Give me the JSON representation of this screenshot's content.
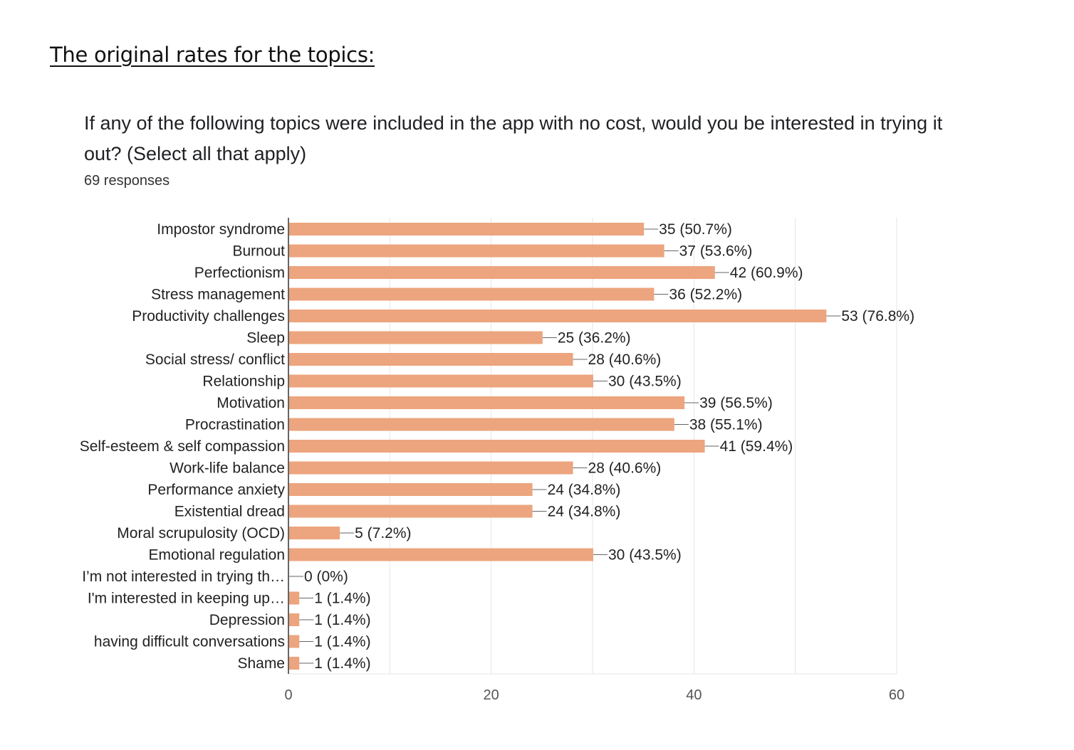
{
  "page": {
    "heading": "The original rates for the topics:",
    "question": "If any of the following topics were included in the app with no cost, would you be interested in trying it out? (Select all that apply)",
    "responses": "69 responses"
  },
  "colors": {
    "bar": "#ECA57E",
    "axis": "#333333",
    "grid": "#e6e6e6",
    "text": "#222222"
  },
  "chart_data": {
    "type": "bar",
    "orientation": "horizontal",
    "categories": [
      "Impostor syndrome",
      "Burnout",
      "Perfectionism",
      "Stress management",
      "Productivity challenges",
      "Sleep",
      "Social stress/ conflict",
      "Relationship",
      "Motivation",
      "Procrastination",
      "Self-esteem & self compassion",
      "Work-life balance",
      "Performance anxiety",
      "Existential dread",
      "Moral scrupulosity (OCD)",
      "Emotional regulation",
      "I’m not interested in trying th…",
      "I'm interested in keeping up…",
      "Depression",
      "having difficult conversations",
      "Shame"
    ],
    "values": [
      35,
      37,
      42,
      36,
      53,
      25,
      28,
      30,
      39,
      38,
      41,
      28,
      24,
      24,
      5,
      30,
      0,
      1,
      1,
      1,
      1
    ],
    "data_labels": [
      "35 (50.7%)",
      "37 (53.6%)",
      "42 (60.9%)",
      "36 (52.2%)",
      "53 (76.8%)",
      "25 (36.2%)",
      "28 (40.6%)",
      "30 (43.5%)",
      "39 (56.5%)",
      "38 (55.1%)",
      "41 (59.4%)",
      "28 (40.6%)",
      "24 (34.8%)",
      "24 (34.8%)",
      "5 (7.2%)",
      "30 (43.5%)",
      "0 (0%)",
      "1 (1.4%)",
      "1 (1.4%)",
      "1 (1.4%)",
      "1 (1.4%)"
    ],
    "x_ticks": [
      "0",
      "20",
      "40",
      "60"
    ],
    "xlim": [
      0,
      60
    ],
    "grid": true
  }
}
